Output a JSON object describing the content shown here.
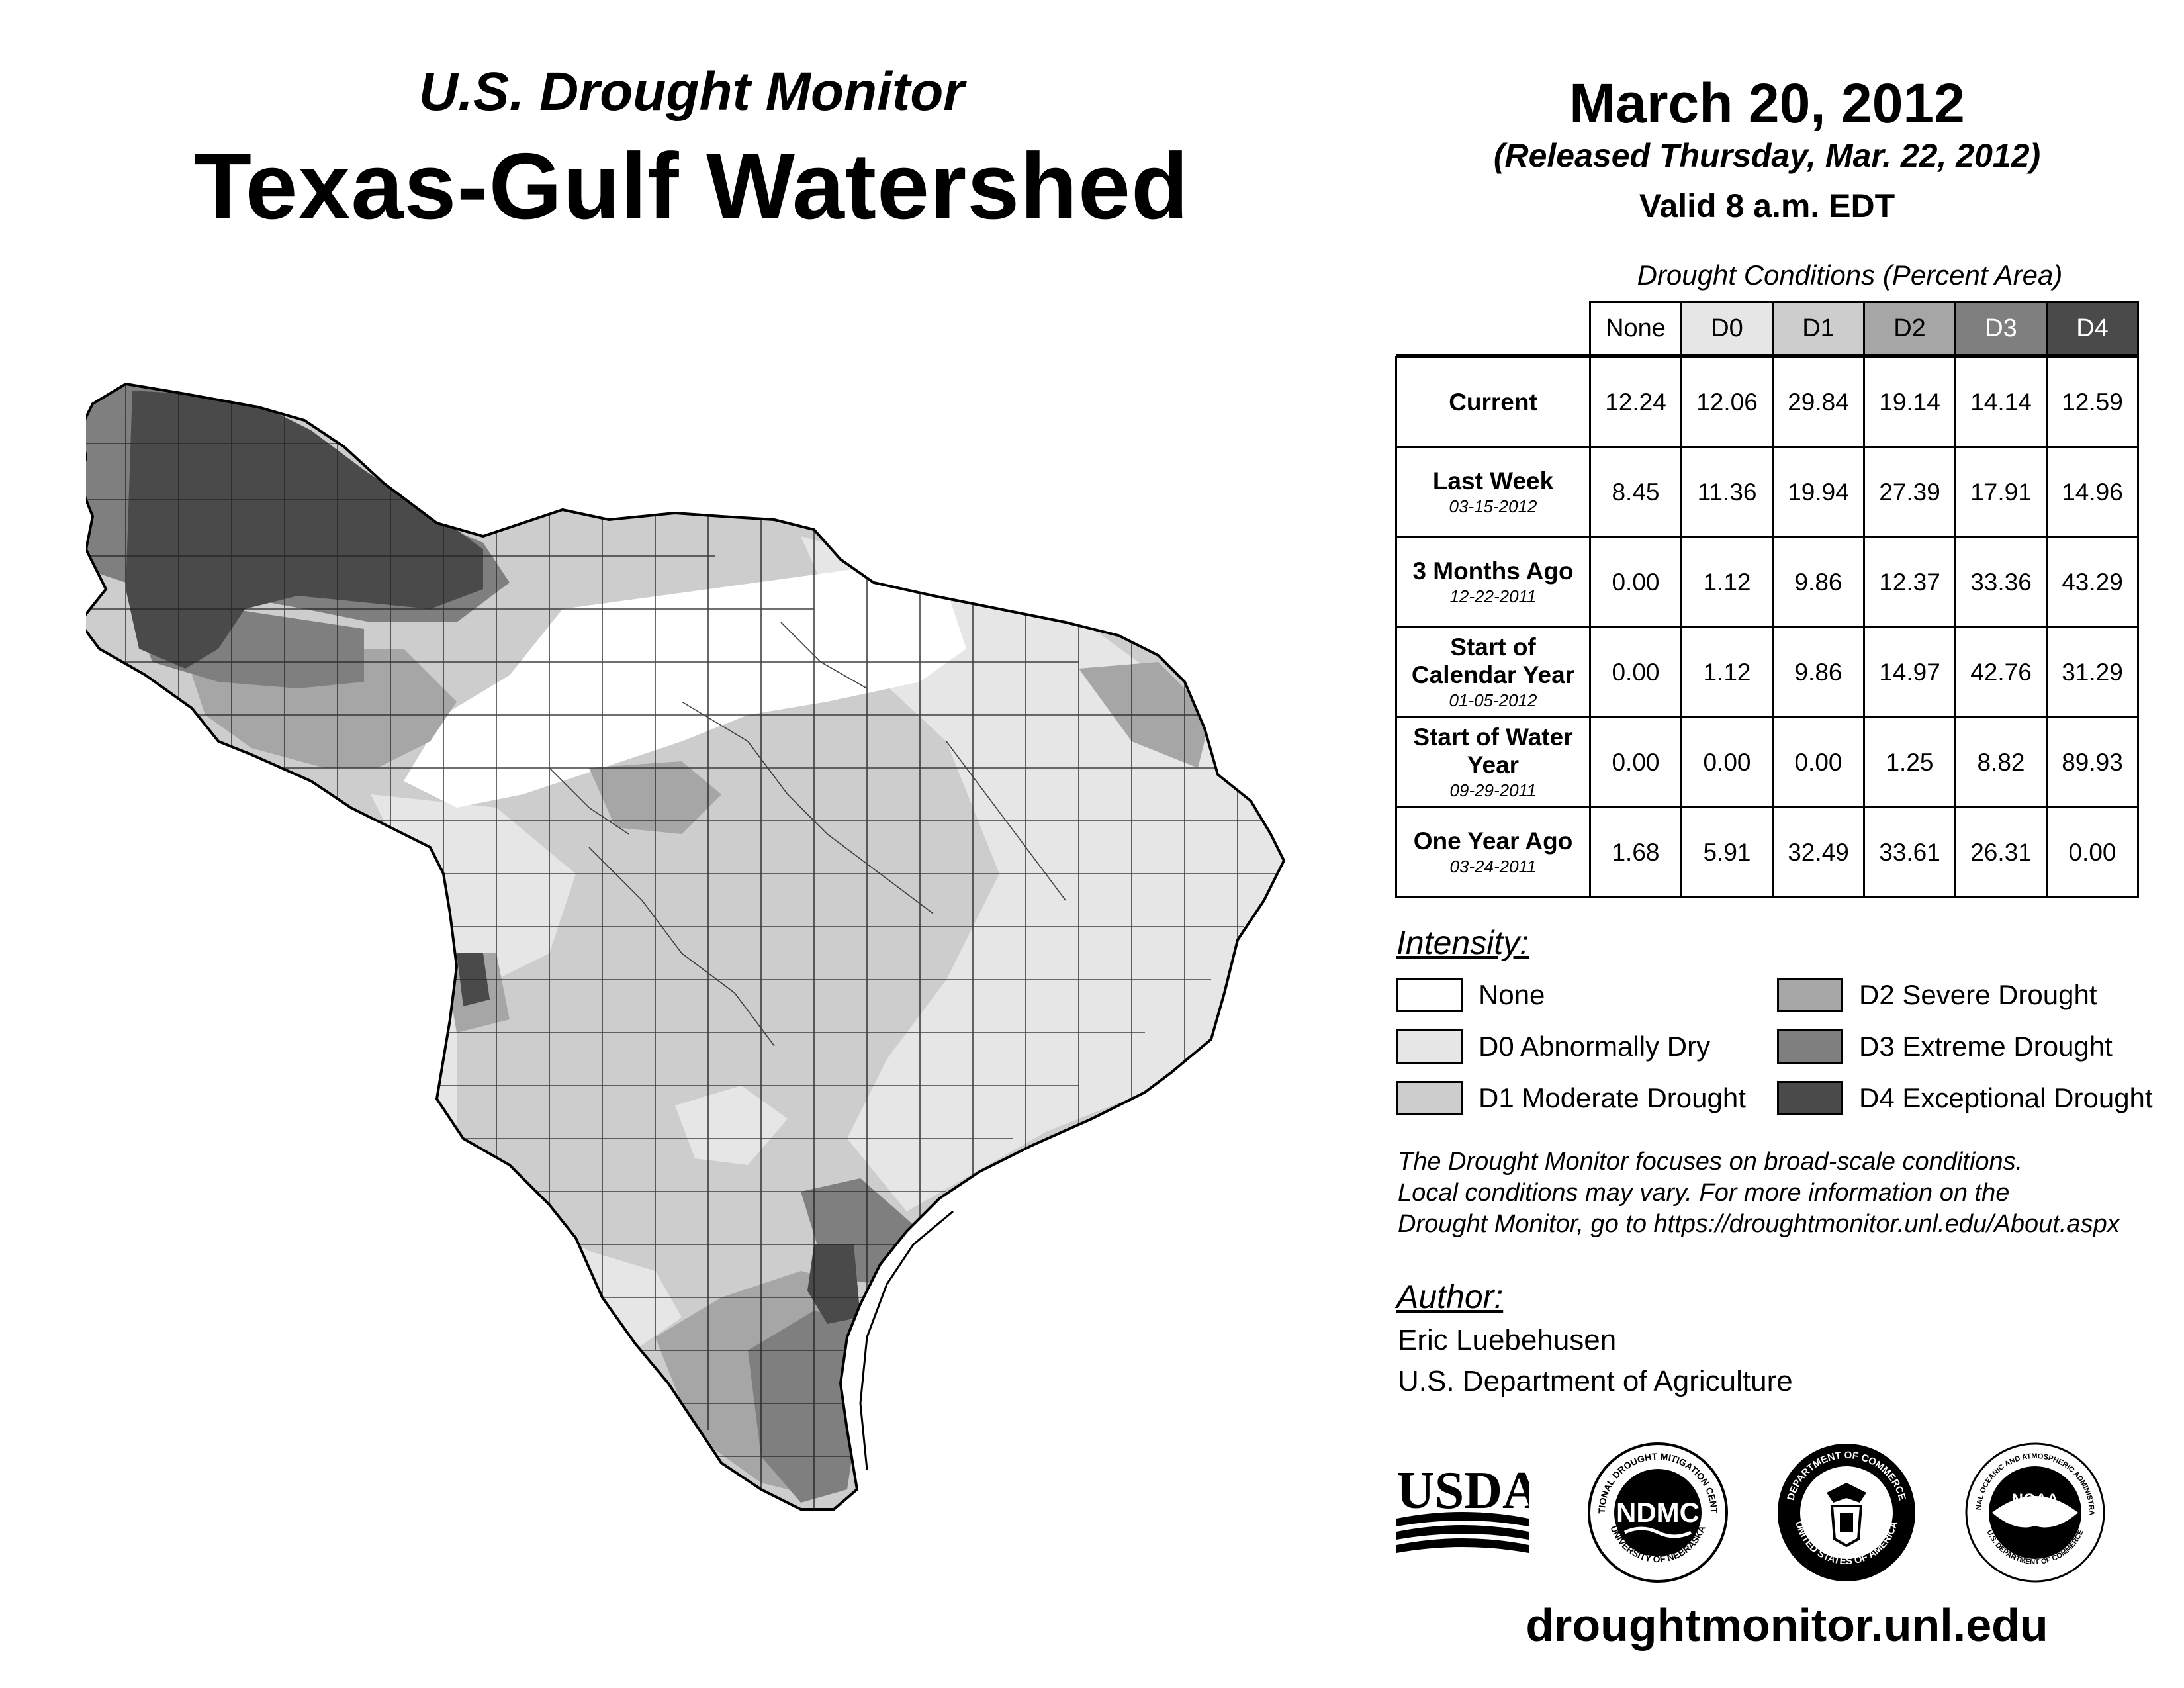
{
  "header": {
    "subtitle": "U.S. Drought Monitor",
    "title": "Texas-Gulf Watershed",
    "date": "March 20, 2012",
    "released": "(Released Thursday, Mar. 22, 2012)",
    "valid": "Valid 8 a.m. EDT"
  },
  "table": {
    "caption": "Drought Conditions (Percent Area)",
    "columns": [
      "None",
      "D0",
      "D1",
      "D2",
      "D3",
      "D4"
    ],
    "rows": [
      {
        "label": "Current",
        "date": "",
        "values": [
          "12.24",
          "12.06",
          "29.84",
          "19.14",
          "14.14",
          "12.59"
        ]
      },
      {
        "label": "Last Week",
        "date": "03-15-2012",
        "values": [
          "8.45",
          "11.36",
          "19.94",
          "27.39",
          "17.91",
          "14.96"
        ]
      },
      {
        "label": "3 Months Ago",
        "date": "12-22-2011",
        "values": [
          "0.00",
          "1.12",
          "9.86",
          "12.37",
          "33.36",
          "43.29"
        ]
      },
      {
        "label": "Start of Calendar Year",
        "date": "01-05-2012",
        "values": [
          "0.00",
          "1.12",
          "9.86",
          "14.97",
          "42.76",
          "31.29"
        ]
      },
      {
        "label": "Start of Water Year",
        "date": "09-29-2011",
        "values": [
          "0.00",
          "0.00",
          "0.00",
          "1.25",
          "8.82",
          "89.93"
        ]
      },
      {
        "label": "One Year Ago",
        "date": "03-24-2011",
        "values": [
          "1.68",
          "5.91",
          "32.49",
          "33.61",
          "26.31",
          "0.00"
        ]
      }
    ]
  },
  "legend": {
    "title": "Intensity:",
    "items": [
      {
        "label": "None",
        "color": "#ffffff"
      },
      {
        "label": "D0 Abnormally Dry",
        "color": "#e6e6e6"
      },
      {
        "label": "D1 Moderate Drought",
        "color": "#cdcdcd"
      },
      {
        "label": "D2 Severe Drought",
        "color": "#a6a6a6"
      },
      {
        "label": "D3 Extreme Drought",
        "color": "#7f7f7f"
      },
      {
        "label": "D4 Exceptional Drought",
        "color": "#4a4a4a"
      }
    ]
  },
  "note": {
    "line1": "The Drought Monitor focuses on broad-scale conditions.",
    "line2": "Local conditions may vary. For more information on the",
    "line3": "Drought Monitor, go to https://droughtmonitor.unl.edu/About.aspx"
  },
  "author": {
    "title": "Author:",
    "name": "Eric Luebehusen",
    "org": "U.S. Department of Agriculture"
  },
  "logos": {
    "usda": "USDA",
    "ndmc": "NDMC",
    "ndmc_ring_top": "NATIONAL DROUGHT MITIGATION CENTER",
    "ndmc_ring_bottom": "UNIVERSITY OF NEBRASKA",
    "doc_ring_top": "DEPARTMENT OF COMMERCE",
    "doc_ring_bottom": "UNITED STATES OF AMERICA",
    "noaa": "NOAA",
    "noaa_ring_top": "NATIONAL OCEANIC AND ATMOSPHERIC ADMINISTRATION",
    "noaa_ring_bottom": "U.S. DEPARTMENT OF COMMERCE"
  },
  "website": "droughtmonitor.unl.edu"
}
